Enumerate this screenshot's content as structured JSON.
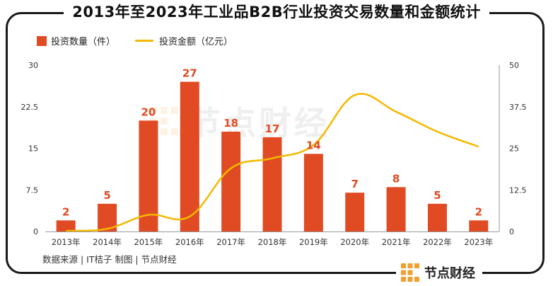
{
  "title": "2013年至2023年工业品B2B行业投资交易数量和金额统计",
  "source_note": "数据来源 | IT桔子  制图 | 节点财经",
  "brand": "节点财经",
  "watermark": "节点财经",
  "colors": {
    "bar": "#e04b23",
    "line": "#f5b800",
    "label": "#e04b23"
  },
  "chart_data": {
    "type": "bar",
    "categories": [
      "2013年",
      "2014年",
      "2015年",
      "2016年",
      "2017年",
      "2018年",
      "2019年",
      "2020年",
      "2021年",
      "2022年",
      "2023年"
    ],
    "series": [
      {
        "name": "投资数量（件）",
        "type": "bar",
        "axis": "left",
        "values": [
          2,
          5,
          20,
          27,
          18,
          17,
          14,
          7,
          8,
          5,
          2
        ]
      },
      {
        "name": "投资金额（亿元）",
        "type": "line",
        "axis": "right",
        "values": [
          0.2,
          0.8,
          5,
          4.5,
          19,
          22,
          26,
          41,
          36,
          30,
          25.5
        ]
      }
    ],
    "y_left": {
      "range": [
        0,
        30
      ],
      "ticks": [
        "0",
        "7.5",
        "15",
        "22.5",
        "30"
      ]
    },
    "y_right": {
      "range": [
        0,
        50
      ],
      "ticks": [
        "0",
        "12.5",
        "25",
        "37.5",
        "50"
      ]
    },
    "data_labels": [
      "2",
      "5",
      "20",
      "27",
      "18",
      "17",
      "14",
      "7",
      "8",
      "5",
      "2"
    ],
    "legend_position": "top-left",
    "grid": false
  }
}
